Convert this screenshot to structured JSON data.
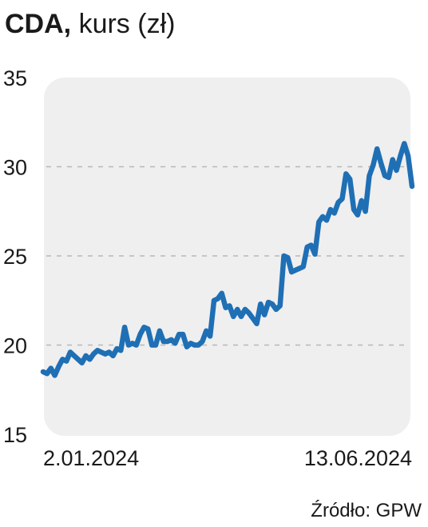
{
  "header": {
    "title_bold": "CDA,",
    "title_rest": "kurs (zł)"
  },
  "footer": {
    "source": "Źródło: GPW"
  },
  "colors": {
    "line": "#1f6fb5",
    "panel": "#efefef",
    "grid": "#b8b8b8",
    "text": "#1a1a1a"
  },
  "chart_data": {
    "type": "line",
    "title": "CDA, kurs (zł)",
    "xlabel": "",
    "ylabel": "",
    "ylim": [
      15,
      35
    ],
    "yticks": [
      15,
      20,
      25,
      30,
      35
    ],
    "x_tick_labels": [
      "2.01.2024",
      "13.06.2024"
    ],
    "x_range": [
      "2.01.2024",
      "13.06.2024"
    ],
    "grid": true,
    "legend": "none",
    "series": [
      {
        "values": [
          18.5,
          18.4,
          18.7,
          18.3,
          18.8,
          19.2,
          19.1,
          19.6,
          19.4,
          19.2,
          19.0,
          19.4,
          19.2,
          19.5,
          19.7,
          19.6,
          19.5,
          19.6,
          19.4,
          19.8,
          19.7,
          21.0,
          20.0,
          20.1,
          20.0,
          20.6,
          21.0,
          20.9,
          20.0,
          20.0,
          20.8,
          20.2,
          20.2,
          20.3,
          20.1,
          20.6,
          20.6,
          19.9,
          20.1,
          20.0,
          20.0,
          20.2,
          20.8,
          20.5,
          22.5,
          22.6,
          22.9,
          22.1,
          22.2,
          21.6,
          22.0,
          21.6,
          22.0,
          21.8,
          21.5,
          21.2,
          22.3,
          21.7,
          22.4,
          22.3,
          22.0,
          22.2,
          25.0,
          24.9,
          24.1,
          24.2,
          24.3,
          24.4,
          25.5,
          25.6,
          25.1,
          26.9,
          27.2,
          27.0,
          27.6,
          27.4,
          28.0,
          28.2,
          29.6,
          29.3,
          27.6,
          27.3,
          28.1,
          27.5,
          29.5,
          30.1,
          31.0,
          30.2,
          29.5,
          29.4,
          30.4,
          29.8,
          30.6,
          31.3,
          30.6,
          28.9
        ]
      }
    ]
  }
}
